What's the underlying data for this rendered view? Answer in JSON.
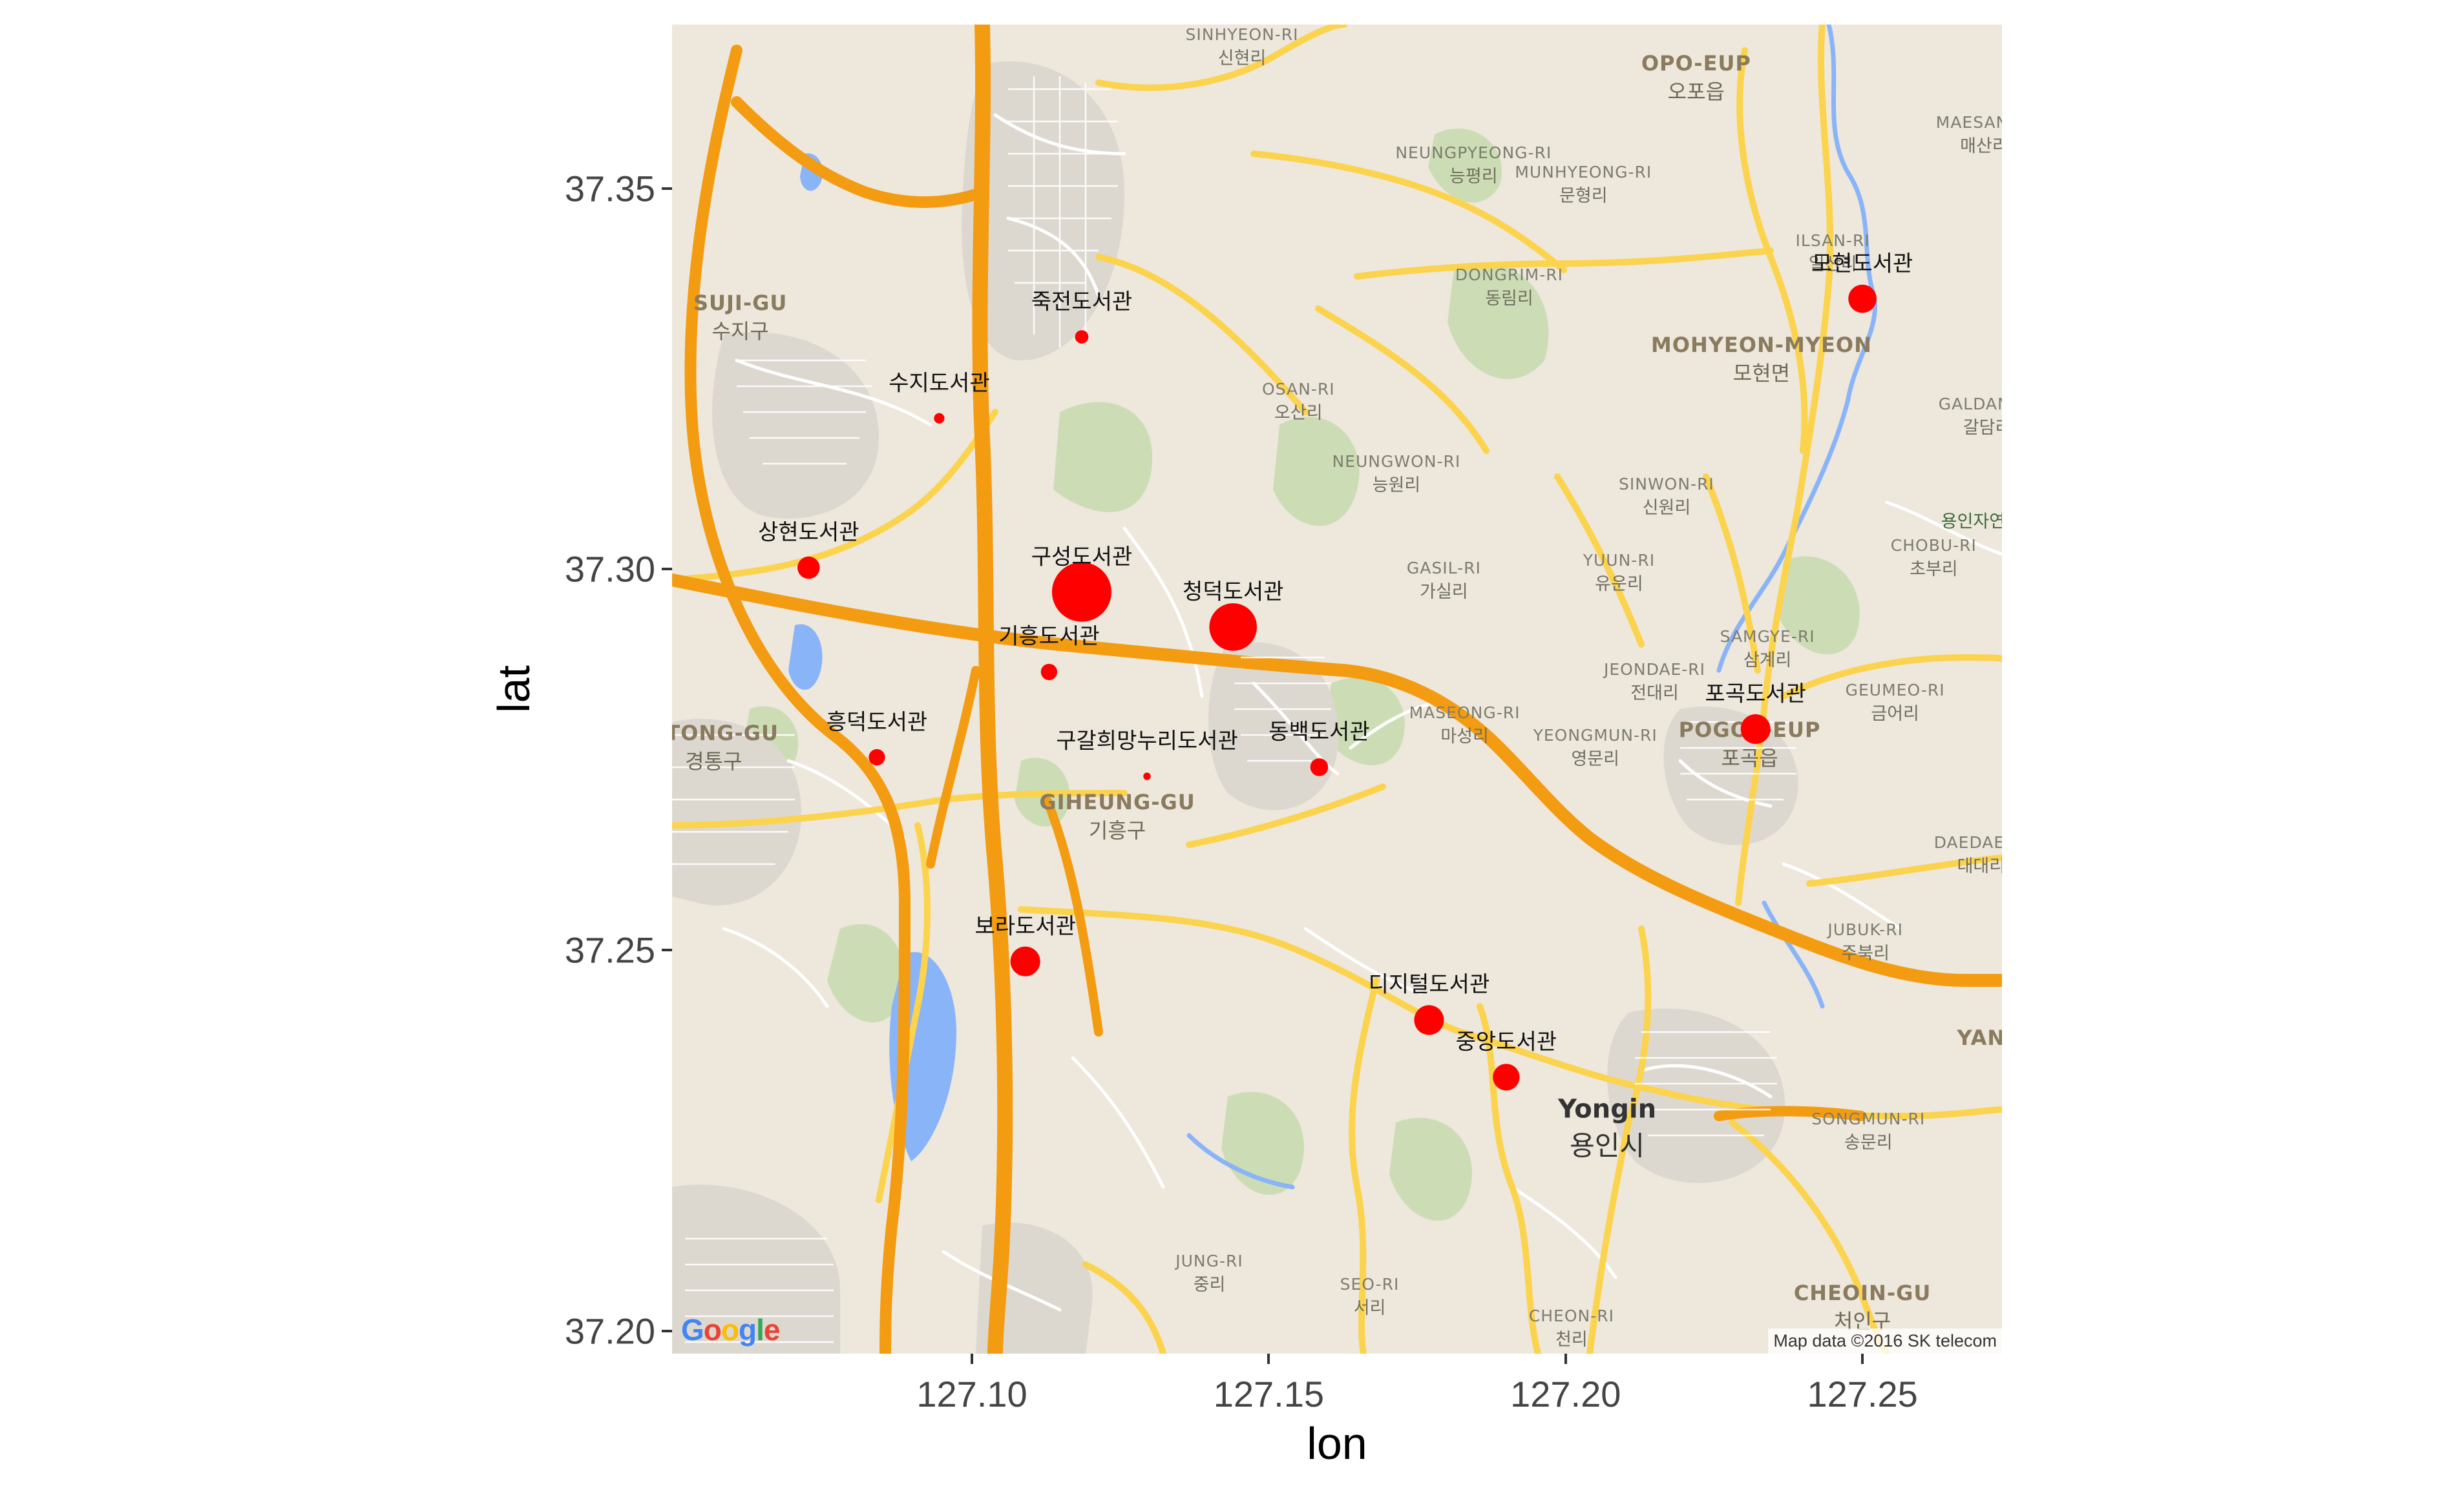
{
  "chart_data": {
    "type": "scatter",
    "title": "",
    "xlabel": "lon",
    "ylabel": "lat",
    "xlim": [
      127.0495,
      127.2735
    ],
    "ylim": [
      37.197,
      37.3715
    ],
    "x_ticks": [
      "127.10",
      "127.15",
      "127.20",
      "127.25"
    ],
    "x_tick_values": [
      127.1,
      127.15,
      127.2,
      127.25
    ],
    "y_ticks": [
      "37.20",
      "37.25",
      "37.30",
      "37.35"
    ],
    "y_tick_values": [
      37.2,
      37.25,
      37.3,
      37.35
    ],
    "point_color": "#ff0000",
    "points": [
      {
        "name": "죽전도서관",
        "lon": 127.1185,
        "lat": 37.3305,
        "size": 9
      },
      {
        "name": "수지도서관",
        "lon": 127.0945,
        "lat": 37.3198,
        "size": 7
      },
      {
        "name": "상현도서관",
        "lon": 127.0725,
        "lat": 37.3002,
        "size": 15
      },
      {
        "name": "구성도서관",
        "lon": 127.1185,
        "lat": 37.297,
        "size": 40
      },
      {
        "name": "청덕도서관",
        "lon": 127.144,
        "lat": 37.2924,
        "size": 32
      },
      {
        "name": "기흥도서관",
        "lon": 127.113,
        "lat": 37.2865,
        "size": 11
      },
      {
        "name": "흥덕도서관",
        "lon": 127.084,
        "lat": 37.2753,
        "size": 11
      },
      {
        "name": "구갈희망누리도서관",
        "lon": 127.1295,
        "lat": 37.2728,
        "size": 5
      },
      {
        "name": "동백도서관",
        "lon": 127.1585,
        "lat": 37.274,
        "size": 12
      },
      {
        "name": "보라도서관",
        "lon": 127.109,
        "lat": 37.2485,
        "size": 20
      },
      {
        "name": "디지털도서관",
        "lon": 127.177,
        "lat": 37.2408,
        "size": 20
      },
      {
        "name": "중앙도서관",
        "lon": 127.19,
        "lat": 37.2333,
        "size": 18
      },
      {
        "name": "포곡도서관",
        "lon": 127.232,
        "lat": 37.279,
        "size": 20
      },
      {
        "name": "모현도서관",
        "lon": 127.25,
        "lat": 37.3355,
        "size": 19
      }
    ]
  },
  "map": {
    "places": [
      {
        "en": "SINHYEON-RI",
        "ko": "신현리",
        "lon": 127.1455,
        "lat": 37.3685
      },
      {
        "en": "OPO-EUP",
        "ko": "오포읍",
        "lon": 127.222,
        "lat": 37.3645,
        "big": true
      },
      {
        "en": "NEUNGPYEONG-RI",
        "ko": "능평리",
        "lon": 127.1845,
        "lat": 37.353
      },
      {
        "en": "MUNHYEONG-RI",
        "ko": "문형리",
        "lon": 127.203,
        "lat": 37.3505
      },
      {
        "en": "MAESAN-RI",
        "ko": "매산리",
        "lon": 127.2705,
        "lat": 37.357
      },
      {
        "en": "ILSAN-RI",
        "ko": "일산리",
        "lon": 127.245,
        "lat": 37.3415
      },
      {
        "en": "SUJI-GU",
        "ko": "수지구",
        "lon": 127.061,
        "lat": 37.333,
        "big": true
      },
      {
        "en": "DONGRIM-RI",
        "ko": "동림리",
        "lon": 127.1905,
        "lat": 37.337
      },
      {
        "en": "MOHYEON-MYEON",
        "ko": "모현면",
        "lon": 127.233,
        "lat": 37.3275,
        "big": true
      },
      {
        "en": "OSAN-RI",
        "ko": "오산리",
        "lon": 127.155,
        "lat": 37.322
      },
      {
        "en": "GALDAM-RI",
        "ko": "갈담리",
        "lon": 127.271,
        "lat": 37.32
      },
      {
        "en": "NEUNGWON-RI",
        "ko": "능원리",
        "lon": 127.1715,
        "lat": 37.3125
      },
      {
        "en": "SINWON-RI",
        "ko": "신원리",
        "lon": 127.217,
        "lat": 37.3095
      },
      {
        "ko": "용인자연휴",
        "lon": 127.27,
        "lat": 37.3065,
        "park": true
      },
      {
        "en": "CHOBU-RI",
        "ko": "초부리",
        "lon": 127.262,
        "lat": 37.3015
      },
      {
        "en": "YUUN-RI",
        "ko": "유운리",
        "lon": 127.209,
        "lat": 37.2995
      },
      {
        "en": "GASIL-RI",
        "ko": "가실리",
        "lon": 127.1795,
        "lat": 37.2985
      },
      {
        "en": "SAMGYE-RI",
        "ko": "삼계리",
        "lon": 127.234,
        "lat": 37.2895
      },
      {
        "en": "JEONDAE-RI",
        "ko": "전대리",
        "lon": 127.215,
        "lat": 37.2852
      },
      {
        "en": "GEUMEO-RI",
        "ko": "금어리",
        "lon": 127.2555,
        "lat": 37.2825
      },
      {
        "en": "MASEONG-RI",
        "ko": "마성리",
        "lon": 127.183,
        "lat": 37.2795
      },
      {
        "en": "POGOK-EUP",
        "ko": "포곡읍",
        "lon": 127.231,
        "lat": 37.277,
        "big": true
      },
      {
        "en": "YEONGMUN-RI",
        "ko": "영문리",
        "lon": 127.205,
        "lat": 37.2765
      },
      {
        "en": "GIHEUNG-GU",
        "ko": "기흥구",
        "lon": 127.1245,
        "lat": 37.2675,
        "big": true
      },
      {
        "en": "GTONG-GU",
        "ko": "경통구",
        "lon": 127.0565,
        "lat": 37.2765,
        "big": true
      },
      {
        "en": "DAEDAE-RI",
        "ko": "대대리",
        "lon": 127.27,
        "lat": 37.2625
      },
      {
        "en": "JUBUK-RI",
        "ko": "주북리",
        "lon": 127.2505,
        "lat": 37.251
      },
      {
        "en": "YAN",
        "lon": 127.27,
        "lat": 37.2385,
        "big": true
      },
      {
        "en": "Yongin",
        "ko": "용인시",
        "lon": 127.207,
        "lat": 37.2265,
        "city": true
      },
      {
        "en": "SONGMUN-RI",
        "ko": "송문리",
        "lon": 127.251,
        "lat": 37.2262
      },
      {
        "en": "JUNG-RI",
        "ko": "중리",
        "lon": 127.14,
        "lat": 37.2075
      },
      {
        "en": "SEO-RI",
        "ko": "서리",
        "lon": 127.167,
        "lat": 37.2045
      },
      {
        "en": "CHEON-RI",
        "ko": "천리",
        "lon": 127.201,
        "lat": 37.2003
      },
      {
        "en": "CHEOIN-GU",
        "ko": "처인구",
        "lon": 127.25,
        "lat": 37.203,
        "big": true
      }
    ],
    "google_logo": "Google",
    "attribution": "Map data ©2016 SK telecom",
    "colors": {
      "land": "#ede7dc",
      "park": "#c8dcb0",
      "urban": "#dcd8d0",
      "water": "#8ab4f8",
      "highway": "#f39c12",
      "arterial": "#fcd34d",
      "local": "#ffffff"
    }
  }
}
